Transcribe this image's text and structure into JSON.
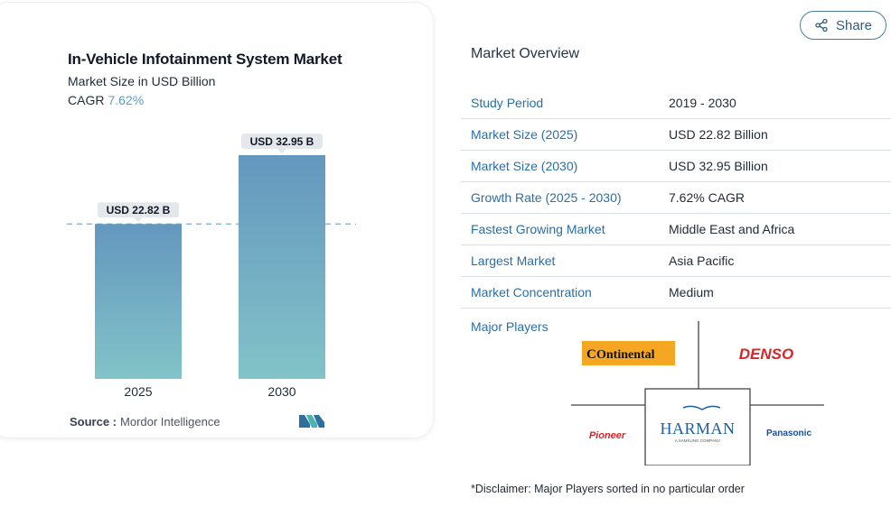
{
  "share": {
    "label": "Share",
    "icon": "share-icon"
  },
  "card": {
    "title": "In-Vehicle Infotainment System Market",
    "subtitle": "Market Size in USD Billion",
    "cagr_label": "CAGR",
    "cagr_value": "7.62%",
    "source_label": "Source :",
    "source_value": "Mordor Intelligence"
  },
  "chart_data": {
    "type": "bar",
    "categories": [
      "2025",
      "2030"
    ],
    "values": [
      22.82,
      32.95
    ],
    "data_labels": [
      "USD 22.82 B",
      "USD 32.95 B"
    ],
    "title": "In-Vehicle Infotainment System Market",
    "subtitle": "Market Size in USD Billion",
    "xlabel": "",
    "ylabel": "",
    "ylim": [
      0,
      35
    ],
    "grid": false,
    "reference_line": 22.82,
    "colors": {
      "bar_top": "#6497be",
      "bar_bottom": "#82c3c8",
      "label_bg": "#e5e8eb",
      "reference": "#7fa9c9"
    }
  },
  "overview": {
    "title": "Market Overview",
    "rows": [
      {
        "label": "Study Period",
        "value": "2019 - 2030"
      },
      {
        "label": "Market Size (2025)",
        "value": "USD 22.82 Billion"
      },
      {
        "label": "Market Size (2030)",
        "value": "USD 32.95 Billion"
      },
      {
        "label": "Growth Rate (2025 - 2030)",
        "value": "7.62% CAGR"
      },
      {
        "label": "Fastest Growing Market",
        "value": "Middle East and Africa"
      },
      {
        "label": "Largest Market",
        "value": "Asia Pacific"
      },
      {
        "label": "Market Concentration",
        "value": "Medium"
      }
    ],
    "major_players_label": "Major Players",
    "players": {
      "continental": "Ontinental",
      "denso": "DENSO",
      "harman": "HARMAN",
      "harman_sub": "A SAMSUNG COMPANY",
      "pioneer": "Pioneer",
      "panasonic": "Panasonic"
    },
    "disclaimer": "*Disclaimer: Major Players sorted in no particular order"
  },
  "colors": {
    "accent": "#2b6ea4",
    "brand_dark": "#111827",
    "continental_orange": "#f5a623",
    "denso_red": "#d7262b",
    "pioneer_red": "#d7262b",
    "panasonic_blue": "#1b4f9b",
    "harman_blue": "#1f5f9a"
  }
}
